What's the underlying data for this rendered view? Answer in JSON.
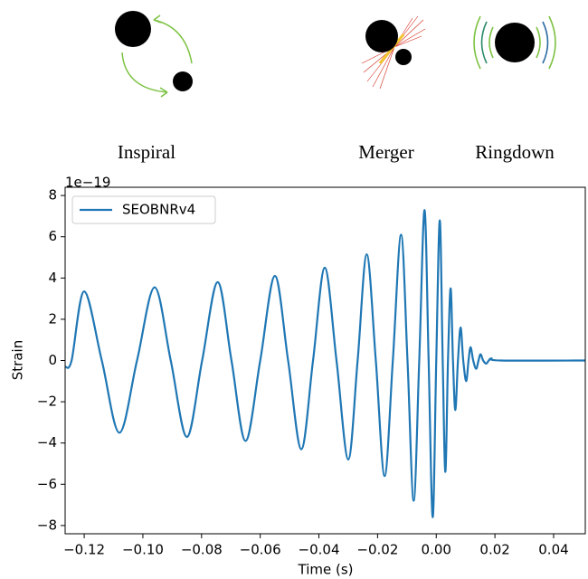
{
  "stages": [
    "Inspiral",
    "Merger",
    "Ringdown"
  ],
  "chart_data": {
    "type": "line",
    "offset_label": "1e−19",
    "xlabel": "Time (s)",
    "ylabel": "Strain",
    "xlim": [
      -0.1265,
      0.0508
    ],
    "ylim": [
      -8.4,
      8.4
    ],
    "xticks": [
      {
        "value": -0.12,
        "label": "−0.12"
      },
      {
        "value": -0.1,
        "label": "−0.10"
      },
      {
        "value": -0.08,
        "label": "−0.08"
      },
      {
        "value": -0.06,
        "label": "−0.06"
      },
      {
        "value": -0.04,
        "label": "−0.04"
      },
      {
        "value": -0.02,
        "label": "−0.02"
      },
      {
        "value": 0,
        "label": "0.00"
      },
      {
        "value": 0.02,
        "label": "0.02"
      },
      {
        "value": 0.04,
        "label": "0.04"
      }
    ],
    "yticks": [
      {
        "value": -8,
        "label": "−8"
      },
      {
        "value": -6,
        "label": "−6"
      },
      {
        "value": -4,
        "label": "−4"
      },
      {
        "value": -2,
        "label": "−2"
      },
      0,
      2,
      4,
      6,
      8
    ],
    "legend": "upper left",
    "x": [
      -0.1265,
      -0.1243,
      -0.12,
      -0.114,
      -0.108,
      -0.102,
      -0.096,
      -0.0905,
      -0.085,
      -0.0798,
      -0.0745,
      -0.0698,
      -0.065,
      -0.06,
      -0.055,
      -0.0505,
      -0.046,
      -0.042,
      -0.038,
      -0.034,
      -0.03,
      -0.0268,
      -0.0237,
      -0.0206,
      -0.0176,
      -0.0148,
      -0.012,
      -0.0098,
      -0.0077,
      -0.0058,
      -0.004,
      -0.0026,
      -0.0012,
      0.0,
      0.0012,
      0.0022,
      0.0031,
      0.004,
      0.0049,
      0.0057,
      0.0065,
      0.0074,
      0.0083,
      0.0092,
      0.0102,
      0.011,
      0.0117,
      0.0126,
      0.0136,
      0.0144,
      0.0151,
      0.016,
      0.017,
      0.0179,
      0.0188,
      0.022,
      0.0508
    ],
    "series": [
      {
        "name": "SEOBNRv4",
        "color": "#1f77b4",
        "values": [
          -0.3,
          0,
          3.35,
          0,
          -3.5,
          0,
          3.55,
          0,
          -3.7,
          0,
          3.8,
          0,
          -3.9,
          0,
          4.1,
          0,
          -4.3,
          0,
          4.5,
          0,
          -4.8,
          0,
          5.15,
          0,
          -5.6,
          0,
          6.1,
          0,
          -6.8,
          0,
          7.3,
          0,
          -7.6,
          0,
          6.8,
          0,
          -5.4,
          0,
          3.5,
          0,
          -2.4,
          0,
          1.6,
          0,
          -1.0,
          0,
          0.65,
          0,
          -0.4,
          0,
          0.3,
          0,
          -0.15,
          0,
          0.1,
          0,
          0
        ]
      }
    ]
  }
}
